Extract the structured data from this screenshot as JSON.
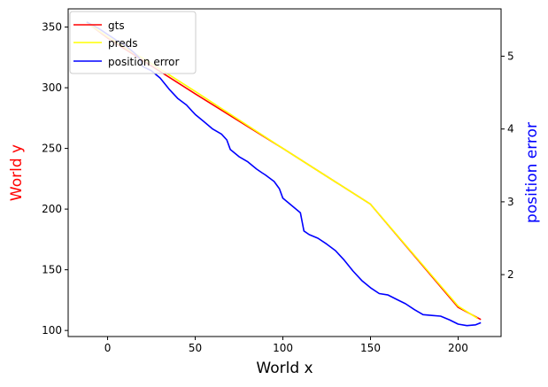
{
  "chart_data": {
    "type": "line",
    "xlabel": "World x",
    "ylabel_left": "World y",
    "ylabel_right": "position error",
    "xlim": [
      -22.5,
      224.5
    ],
    "ylim_left": [
      95,
      365
    ],
    "ylim_right": [
      1.15,
      5.65
    ],
    "x_ticks": [
      0,
      50,
      100,
      150,
      200
    ],
    "y_left_ticks": [
      100,
      150,
      200,
      250,
      300,
      350
    ],
    "y_right_ticks": [
      2,
      3,
      4,
      5
    ],
    "grid": false,
    "legend_position": "top-left",
    "colors": {
      "gts": "#ff0000",
      "preds": "#ffff00",
      "position_error": "#0000ff",
      "ylabel_left": "#ff0000",
      "ylabel_right": "#0000ff"
    },
    "series": [
      {
        "name": "gts",
        "axis": "left",
        "points": [
          [
            -12,
            354
          ],
          [
            0,
            341
          ],
          [
            25,
            318
          ],
          [
            50,
            295
          ],
          [
            100,
            250
          ],
          [
            150,
            204
          ],
          [
            200,
            119
          ],
          [
            213,
            109
          ]
        ]
      },
      {
        "name": "preds",
        "axis": "left",
        "points": [
          [
            -12,
            354
          ],
          [
            0,
            342
          ],
          [
            25,
            320
          ],
          [
            50,
            297
          ],
          [
            100,
            250
          ],
          [
            150,
            204
          ],
          [
            200,
            120
          ],
          [
            211,
            110
          ]
        ]
      },
      {
        "name": "position error",
        "axis": "right",
        "points": [
          [
            -12,
            5.47
          ],
          [
            -5,
            5.38
          ],
          [
            0,
            5.3
          ],
          [
            5,
            5.22
          ],
          [
            10,
            5.15
          ],
          [
            15,
            5.05
          ],
          [
            18,
            4.98
          ],
          [
            20,
            4.86
          ],
          [
            25,
            4.8
          ],
          [
            30,
            4.7
          ],
          [
            35,
            4.55
          ],
          [
            40,
            4.42
          ],
          [
            45,
            4.33
          ],
          [
            48,
            4.25
          ],
          [
            50,
            4.2
          ],
          [
            55,
            4.1
          ],
          [
            60,
            4.0
          ],
          [
            65,
            3.93
          ],
          [
            68,
            3.85
          ],
          [
            70,
            3.72
          ],
          [
            75,
            3.62
          ],
          [
            80,
            3.55
          ],
          [
            85,
            3.45
          ],
          [
            88,
            3.4
          ],
          [
            90,
            3.37
          ],
          [
            95,
            3.28
          ],
          [
            98,
            3.18
          ],
          [
            100,
            3.05
          ],
          [
            105,
            2.95
          ],
          [
            110,
            2.85
          ],
          [
            112,
            2.6
          ],
          [
            115,
            2.55
          ],
          [
            120,
            2.5
          ],
          [
            125,
            2.42
          ],
          [
            130,
            2.33
          ],
          [
            135,
            2.2
          ],
          [
            140,
            2.05
          ],
          [
            145,
            1.92
          ],
          [
            150,
            1.82
          ],
          [
            155,
            1.74
          ],
          [
            160,
            1.72
          ],
          [
            165,
            1.66
          ],
          [
            170,
            1.6
          ],
          [
            175,
            1.52
          ],
          [
            180,
            1.45
          ],
          [
            185,
            1.44
          ],
          [
            190,
            1.43
          ],
          [
            195,
            1.38
          ],
          [
            200,
            1.32
          ],
          [
            205,
            1.3
          ],
          [
            210,
            1.31
          ],
          [
            213,
            1.34
          ]
        ]
      }
    ]
  }
}
